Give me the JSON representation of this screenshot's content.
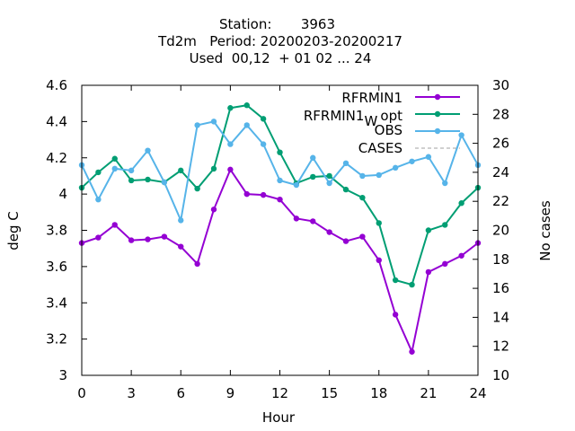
{
  "chart_data": {
    "type": "line",
    "title": {
      "line1_label": "Station:",
      "line1_value": "3963",
      "line2": "Td2m   Period: 20200203-20200217",
      "line3": "Used  00,12  + 01 02 ... 24"
    },
    "xlabel": "Hour",
    "ylabel": "deg C",
    "y2label": "No cases",
    "xlim": [
      0,
      24
    ],
    "ylim": [
      3,
      4.6
    ],
    "y2lim": [
      10,
      30
    ],
    "xticks": [
      "0",
      "3",
      "6",
      "9",
      "12",
      "15",
      "18",
      "21",
      "24"
    ],
    "yticks": [
      "3",
      "3.2",
      "3.4",
      "3.6",
      "3.8",
      "4",
      "4.2",
      "4.4",
      "4.6"
    ],
    "y2ticks": [
      "10",
      "12",
      "14",
      "16",
      "18",
      "20",
      "22",
      "24",
      "26",
      "28",
      "30"
    ],
    "grid": false,
    "legend_position": "top-right",
    "x": [
      0,
      1,
      2,
      3,
      4,
      5,
      6,
      7,
      8,
      9,
      10,
      11,
      12,
      13,
      14,
      15,
      16,
      17,
      18,
      19,
      20,
      21,
      22,
      23,
      24
    ],
    "series": [
      {
        "name": "RFRMIN1",
        "color": "#9400d3",
        "marker": "circle",
        "values": [
          3.73,
          3.76,
          3.83,
          3.745,
          3.75,
          3.765,
          3.71,
          3.615,
          3.915,
          4.135,
          4.0,
          3.995,
          3.97,
          3.865,
          3.85,
          3.79,
          3.74,
          3.765,
          3.635,
          3.335,
          3.13,
          3.57,
          3.615,
          3.66,
          3.73
        ]
      },
      {
        "name_main": "RFRMIN1",
        "name_sub": "W",
        "name_tail": "opt",
        "color": "#009e73",
        "marker": "circle",
        "values": [
          4.035,
          4.12,
          4.195,
          4.075,
          4.08,
          4.065,
          4.13,
          4.03,
          4.14,
          4.475,
          4.49,
          4.415,
          4.23,
          4.06,
          4.095,
          4.1,
          4.025,
          3.98,
          3.84,
          3.525,
          3.5,
          3.8,
          3.83,
          3.95,
          4.035
        ]
      },
      {
        "name": "OBS",
        "color": "#56b4e9",
        "marker": "circle",
        "values": [
          4.16,
          3.97,
          4.14,
          4.13,
          4.24,
          4.065,
          3.855,
          4.38,
          4.4,
          4.275,
          4.38,
          4.275,
          4.075,
          4.05,
          4.2,
          4.06,
          4.17,
          4.1,
          4.105,
          4.145,
          4.18,
          4.205,
          4.06,
          4.325,
          4.16
        ]
      },
      {
        "name": "CASES",
        "color": "#a0a0a0",
        "axis": "y2",
        "dashed": true,
        "values": [
          30,
          30,
          30,
          30,
          30,
          30,
          30,
          30,
          30,
          30,
          30,
          30,
          30,
          30,
          30,
          30,
          30,
          30,
          30,
          30,
          30,
          30,
          30,
          30,
          30
        ]
      }
    ]
  }
}
